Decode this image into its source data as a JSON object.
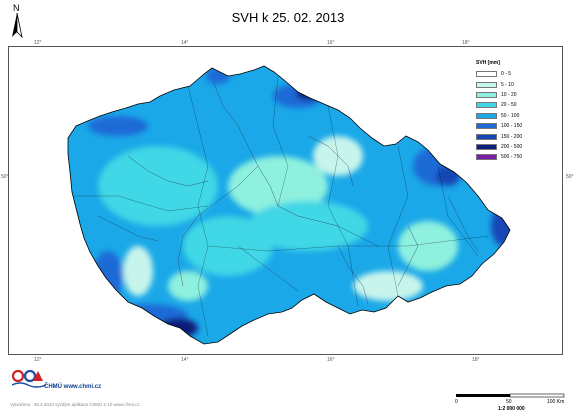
{
  "title": "SVH k 25. 02. 2013",
  "north_label": "N",
  "grid_labels": {
    "top": [
      "12°",
      "14°",
      "16°",
      "18°"
    ],
    "bottom": [
      "12°",
      "14°",
      "16°",
      "18°"
    ],
    "left": [
      "50°"
    ],
    "right": [
      "50°"
    ]
  },
  "legend": {
    "title": "SVH [mm]",
    "items": [
      {
        "label": "0 - 5",
        "color": "#ffffff"
      },
      {
        "label": "5 - 10",
        "color": "#c7f5ec"
      },
      {
        "label": "10 - 20",
        "color": "#8ef0de"
      },
      {
        "label": "20 - 50",
        "color": "#3fd7e6"
      },
      {
        "label": "50 - 100",
        "color": "#1aa8e8"
      },
      {
        "label": "100 - 150",
        "color": "#1b6ad6"
      },
      {
        "label": "150 - 200",
        "color": "#1746b5"
      },
      {
        "label": "200 - 500",
        "color": "#0f1f7a"
      },
      {
        "label": "500 - 750",
        "color": "#7a1fa8"
      }
    ]
  },
  "org": {
    "name": "ČHMÚ www.chmi.cz"
  },
  "footer_text": "Vytvořeno : 26.2.2013 vyzdým aplikace ChMÚ 2-10 www.chmi.cz",
  "scale": {
    "ticks": [
      "0",
      "50",
      "100 Km"
    ],
    "ratio": "1:2 000 000"
  }
}
